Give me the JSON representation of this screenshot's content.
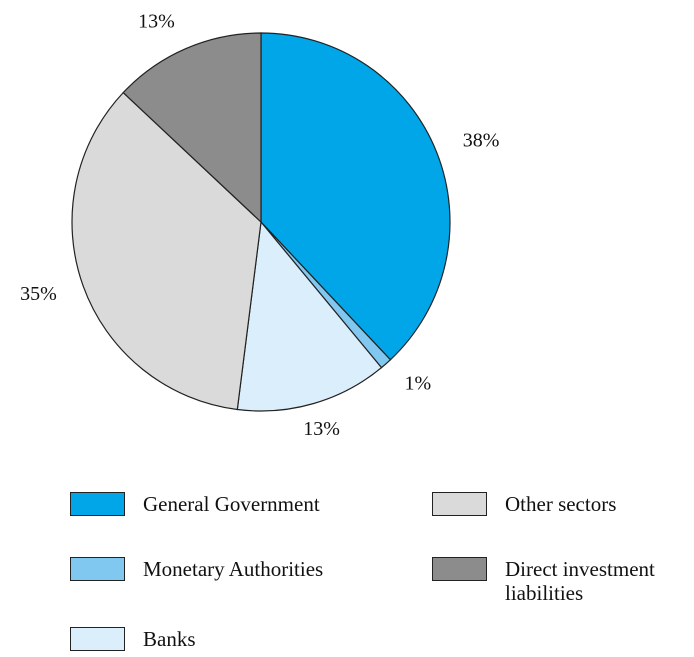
{
  "chart_data": {
    "type": "pie",
    "series": [
      {
        "name": "General Government",
        "color": "#00a6e8",
        "values": [
          38
        ],
        "value_labels": [
          "38%"
        ]
      },
      {
        "name": "Monetary Authorities",
        "color": "#80c8f0",
        "values": [
          1
        ],
        "value_labels": [
          "1%"
        ]
      },
      {
        "name": "Banks",
        "color": "#dbeefc",
        "values": [
          13
        ],
        "value_labels": [
          "13%"
        ]
      },
      {
        "name": "Other sectors",
        "color": "#dadada",
        "values": [
          35
        ],
        "value_labels": [
          "35%"
        ]
      },
      {
        "name": "Direct investment liabilities",
        "color": "#8c8c8c",
        "values": [
          13
        ],
        "value_labels": [
          "13%"
        ]
      }
    ]
  }
}
